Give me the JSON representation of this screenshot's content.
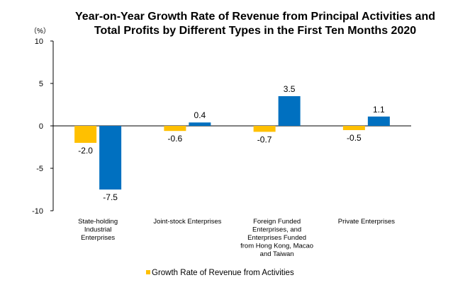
{
  "chart_data": {
    "type": "bar",
    "title_lines": [
      "Year-on-Year Growth Rate of Revenue from Principal Activities  and",
      "Total Profits by Different Types in the First Ten Months 2020"
    ],
    "unit_label": "（%）",
    "categories": [
      [
        "State-holding",
        "Industrial",
        "Enterprises"
      ],
      [
        "Joint-stock Enterprises"
      ],
      [
        "Foreign Funded",
        "Enterprises, and",
        "Enterprises Funded",
        "from Hong Kong, Macao",
        "and Taiwan"
      ],
      [
        "Private Enterprises"
      ]
    ],
    "series": [
      {
        "name": "Growth Rate of Revenue from Activities",
        "color": "#FFC000",
        "values": [
          -2.0,
          -0.6,
          -0.7,
          -0.5
        ]
      },
      {
        "color": "#0070C0",
        "values": [
          -7.5,
          0.4,
          3.5,
          1.1
        ]
      }
    ],
    "data_labels": [
      [
        "-2.0",
        "-0.6",
        "-0.7",
        "-0.5"
      ],
      [
        "-7.5",
        "0.4",
        "3.5",
        "1.1"
      ]
    ],
    "yticks": [
      10,
      5,
      0,
      -5,
      -10
    ],
    "ylim": [
      -10,
      10
    ],
    "grid": false,
    "legend_position": "bottom"
  }
}
